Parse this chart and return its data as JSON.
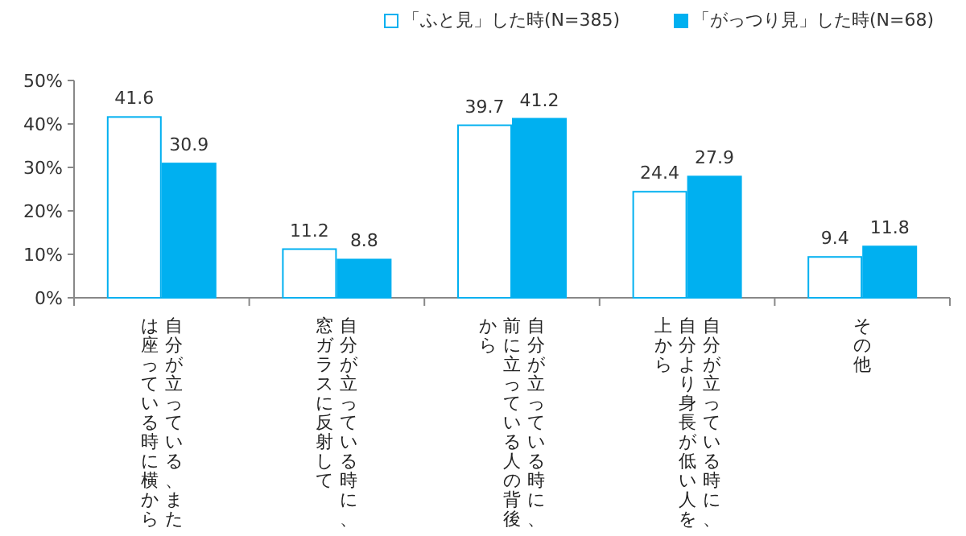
{
  "chart_data": {
    "type": "bar",
    "categories": [
      "自分が立っている、または座っている時に横から",
      "自分が立っている時に、窓ガラスに反射して",
      "自分が立っている時に、前に立っている人の背後から",
      "自分が立っている時に、自分より身長が低い人を上から",
      "その他"
    ],
    "series": [
      {
        "name": "「ふと見」した時(N=385)",
        "color": "#ffffff",
        "values": [
          41.6,
          11.2,
          39.7,
          24.4,
          9.4
        ]
      },
      {
        "name": "「がっつり見」した時(N=68)",
        "color": "#00b0f0",
        "values": [
          30.9,
          8.8,
          41.2,
          27.9,
          11.8
        ]
      }
    ],
    "ylim": [
      0,
      50
    ],
    "yticks": [
      {
        "value": 0,
        "label": "0%"
      },
      {
        "value": 10,
        "label": "10%"
      },
      {
        "value": 20,
        "label": "20%"
      },
      {
        "value": 30,
        "label": "30%"
      },
      {
        "value": 40,
        "label": "40%"
      },
      {
        "value": 50,
        "label": "50%"
      }
    ],
    "data_labels": true,
    "legend": "top",
    "grid": false
  }
}
